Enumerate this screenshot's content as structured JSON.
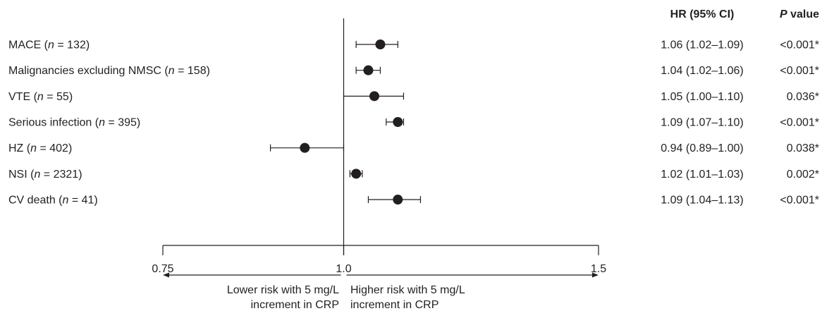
{
  "chart_data": {
    "type": "scatter",
    "xscale": "log",
    "xlim": [
      0.75,
      1.5
    ],
    "xticks": [
      0.75,
      1.0,
      1.5
    ],
    "xtick_labels": [
      "0.75",
      "1.0",
      "1.5"
    ],
    "reference_line": 1.0,
    "grid": false,
    "columns": {
      "hr_header": "HR (95% CI)",
      "p_header": "P value"
    },
    "rows": [
      {
        "label": "MACE (n = 132)",
        "hr": 1.06,
        "ci_low": 1.02,
        "ci_high": 1.09,
        "hr_text": "1.06 (1.02–1.09)",
        "p_text": "<0.001*"
      },
      {
        "label": "Malignancies excluding NMSC (n = 158)",
        "hr": 1.04,
        "ci_low": 1.02,
        "ci_high": 1.06,
        "hr_text": "1.04 (1.02–1.06)",
        "p_text": "<0.001*"
      },
      {
        "label": "VTE (n = 55)",
        "hr": 1.05,
        "ci_low": 1.0,
        "ci_high": 1.1,
        "hr_text": "1.05 (1.00–1.10)",
        "p_text": "0.036*"
      },
      {
        "label": "Serious infection (n = 395)",
        "hr": 1.09,
        "ci_low": 1.07,
        "ci_high": 1.1,
        "hr_text": "1.09 (1.07–1.10)",
        "p_text": "<0.001*"
      },
      {
        "label": "HZ (n = 402)",
        "hr": 0.94,
        "ci_low": 0.89,
        "ci_high": 1.0,
        "hr_text": "0.94 (0.89–1.00)",
        "p_text": "0.038*"
      },
      {
        "label": "NSI (n = 2321)",
        "hr": 1.02,
        "ci_low": 1.01,
        "ci_high": 1.03,
        "hr_text": "1.02 (1.01–1.03)",
        "p_text": "0.002*"
      },
      {
        "label": "CV death (n = 41)",
        "hr": 1.09,
        "ci_low": 1.04,
        "ci_high": 1.13,
        "hr_text": "1.09 (1.04–1.13)",
        "p_text": "<0.001*"
      }
    ],
    "annotations": {
      "lower": [
        "Lower risk with 5 mg/L",
        "increment in CRP"
      ],
      "higher": [
        "Higher risk with 5 mg/L",
        "increment in CRP"
      ]
    },
    "colors": {
      "ink": "#231f20"
    }
  }
}
